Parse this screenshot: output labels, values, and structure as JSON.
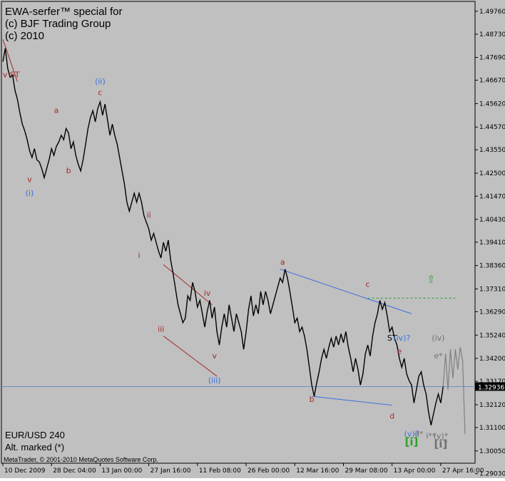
{
  "header": {
    "line1": "EWA-serfer™ special for",
    "line2": "(c) BJF Trading Group",
    "line3": "(c) 2010"
  },
  "footer": {
    "symbol": "EUR/USD 240",
    "note": "Alt. marked (*)",
    "copyright": "MetaTrader, © 2001-2010 MetaQuotes Software Corp."
  },
  "colors": {
    "background": "#c0c0c0",
    "price": "#000000",
    "wave_red": "#a52a2a",
    "wave_blue": "#3a6fe0",
    "projection": "#808080",
    "target_green": "#2ca02c",
    "current_price_line": "#6a8fc8"
  },
  "chart_data": {
    "type": "line",
    "title": "",
    "symbol": "EUR/USD",
    "timeframe": "240",
    "current_price": 1.32936,
    "ylim": [
      1.295,
      1.502
    ],
    "y_ticks": [
      "1.49760",
      "1.48730",
      "1.47690",
      "1.46670",
      "1.45620",
      "1.44570",
      "1.43550",
      "1.42500",
      "1.41470",
      "1.40430",
      "1.39410",
      "1.38360",
      "1.37310",
      "1.36290",
      "1.35240",
      "1.34200",
      "1.33170",
      "1.32936",
      "1.32120",
      "1.31100",
      "1.30050",
      "1.29030"
    ],
    "x_ticks": [
      "10 Dec 2009",
      "28 Dec 04:00",
      "13 Jan 00:00",
      "27 Jan 16:00",
      "11 Feb 08:00",
      "26 Feb 00:00",
      "12 Mar 16:00",
      "29 Mar 08:00",
      "13 Apr 00:00",
      "27 Apr 16:00"
    ],
    "series": [
      {
        "values": [
          1.475,
          1.481,
          1.472,
          1.468,
          1.469,
          1.462,
          1.458,
          1.452,
          1.447,
          1.444,
          1.44,
          1.435,
          1.432,
          1.436,
          1.431,
          1.43,
          1.427,
          1.423,
          1.427,
          1.431,
          1.436,
          1.433,
          1.437,
          1.439,
          1.442,
          1.44,
          1.445,
          1.443,
          1.436,
          1.439,
          1.433,
          1.429,
          1.426,
          1.431,
          1.438,
          1.445,
          1.45,
          1.453,
          1.448,
          1.454,
          1.457,
          1.451,
          1.456,
          1.449,
          1.442,
          1.447,
          1.442,
          1.438,
          1.432,
          1.426,
          1.42,
          1.412,
          1.408,
          1.412,
          1.416,
          1.412,
          1.416,
          1.412,
          1.406,
          1.403,
          1.4,
          1.395,
          1.398,
          1.394,
          1.39,
          1.387,
          1.394,
          1.39,
          1.395,
          1.386,
          1.38,
          1.373,
          1.366,
          1.362,
          1.358,
          1.36,
          1.37,
          1.368,
          1.376,
          1.372,
          1.365,
          1.368,
          1.362,
          1.356,
          1.363,
          1.368,
          1.36,
          1.365,
          1.354,
          1.348,
          1.356,
          1.362,
          1.356,
          1.366,
          1.36,
          1.354,
          1.362,
          1.358,
          1.354,
          1.346,
          1.354,
          1.364,
          1.37,
          1.361,
          1.366,
          1.362,
          1.372,
          1.366,
          1.372,
          1.368,
          1.362,
          1.366,
          1.37,
          1.374,
          1.378,
          1.376,
          1.382,
          1.378,
          1.372,
          1.365,
          1.358,
          1.36,
          1.354,
          1.356,
          1.352,
          1.346,
          1.338,
          1.33,
          1.325,
          1.331,
          1.336,
          1.342,
          1.346,
          1.342,
          1.347,
          1.351,
          1.347,
          1.352,
          1.348,
          1.353,
          1.349,
          1.354,
          1.347,
          1.342,
          1.336,
          1.342,
          1.337,
          1.33,
          1.335,
          1.344,
          1.348,
          1.343,
          1.352,
          1.358,
          1.362,
          1.368,
          1.364,
          1.367,
          1.361,
          1.354,
          1.356,
          1.351,
          1.348,
          1.342,
          1.338,
          1.342,
          1.335,
          1.332,
          1.33,
          1.322,
          1.328,
          1.334,
          1.336,
          1.33,
          1.326,
          1.318,
          1.312,
          1.317,
          1.322,
          1.326,
          1.322,
          1.3294
        ]
      }
    ],
    "projection": [
      1.3294,
      1.344,
      1.328,
      1.346,
      1.333,
      1.346,
      1.337,
      1.347,
      1.341,
      1.308
    ],
    "annotations": [
      {
        "text": "iv ST",
        "color": "red",
        "x_idx": 3,
        "price": 1.468
      },
      {
        "text": "(ii)",
        "color": "blue",
        "x_idx": 40,
        "price": 1.465
      },
      {
        "text": "c",
        "color": "red",
        "x_idx": 40,
        "price": 1.46
      },
      {
        "text": "a",
        "color": "red",
        "x_idx": 22,
        "price": 1.452
      },
      {
        "text": "b",
        "color": "red",
        "x_idx": 27,
        "price": 1.425
      },
      {
        "text": "v",
        "color": "red",
        "x_idx": 11,
        "price": 1.421
      },
      {
        "text": "(i)",
        "color": "blue",
        "x_idx": 11,
        "price": 1.415
      },
      {
        "text": "ii",
        "color": "red",
        "x_idx": 60,
        "price": 1.405
      },
      {
        "text": "i",
        "color": "red",
        "x_idx": 56,
        "price": 1.387
      },
      {
        "text": "iii",
        "color": "red",
        "x_idx": 65,
        "price": 1.354
      },
      {
        "text": "iv",
        "color": "red",
        "x_idx": 84,
        "price": 1.37
      },
      {
        "text": "v",
        "color": "red",
        "x_idx": 87,
        "price": 1.342
      },
      {
        "text": "(iii)",
        "color": "blue",
        "x_idx": 87,
        "price": 1.331
      },
      {
        "text": "a",
        "color": "red",
        "x_idx": 115,
        "price": 1.384
      },
      {
        "text": "b",
        "color": "red",
        "x_idx": 127,
        "price": 1.3225
      },
      {
        "text": "c",
        "color": "red",
        "x_idx": 150,
        "price": 1.374
      },
      {
        "text": "ST",
        "color": "black",
        "x_idx": 160,
        "price": 1.35
      },
      {
        "text": "(iv)?",
        "color": "blue",
        "x_idx": 164,
        "price": 1.35
      },
      {
        "text": "e",
        "color": "red",
        "x_idx": 163,
        "price": 1.344
      },
      {
        "text": "d",
        "color": "red",
        "x_idx": 160,
        "price": 1.315
      },
      {
        "text": "(v)?",
        "color": "blue",
        "x_idx": 168,
        "price": 1.307
      },
      {
        "text": "d*",
        "color": "gray",
        "x_idx": 171,
        "price": 1.307
      },
      {
        "text": "[i]",
        "color": "green",
        "x_idx": 168,
        "price": 1.303
      },
      {
        "text": "(iv)",
        "color": "gray",
        "x_idx": 179,
        "price": 1.35
      },
      {
        "text": "e*",
        "color": "gray",
        "x_idx": 179,
        "price": 1.342
      },
      {
        "text": "i**",
        "color": "gray",
        "x_idx": 176,
        "price": 1.306
      },
      {
        "text": "(v)*",
        "color": "gray",
        "x_idx": 180,
        "price": 1.306
      },
      {
        "text": "[i]",
        "color": "gray",
        "x_idx": 180,
        "price": 1.302
      },
      {
        "text": "*",
        "color": "gray",
        "x_idx": 182,
        "price": 1.303
      },
      {
        "text": "⇧",
        "color": "green",
        "x_idx": 176,
        "price": 1.376
      }
    ],
    "legend": "none",
    "grid": false
  }
}
